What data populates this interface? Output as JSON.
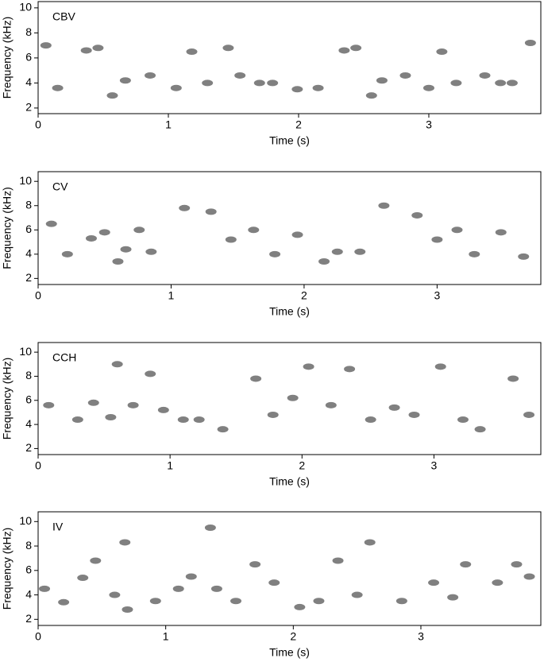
{
  "chart_data": [
    {
      "type": "spectrogram",
      "label": "CBV",
      "xlabel": "Time (s)",
      "ylabel": "Frequency (kHz)",
      "color": "#555555",
      "xlim": [
        0,
        3.86
      ],
      "ylim": [
        1.55,
        10.5
      ],
      "xticks": [
        0,
        1,
        2,
        3
      ],
      "yticks": [
        2,
        4,
        6,
        8,
        10
      ],
      "x": [
        0.06,
        0.15,
        0.37,
        0.46,
        0.57,
        0.67,
        0.86,
        1.06,
        1.18,
        1.3,
        1.46,
        1.55,
        1.7,
        1.8,
        1.99,
        2.15,
        2.35,
        2.44,
        2.56,
        2.64,
        2.82,
        3.0,
        3.1,
        3.21,
        3.43,
        3.55,
        3.64,
        3.78
      ],
      "values": [
        7.0,
        3.6,
        6.6,
        6.8,
        3.0,
        4.2,
        4.6,
        3.6,
        6.5,
        4.0,
        6.8,
        4.6,
        4.0,
        4.0,
        3.5,
        3.6,
        6.6,
        6.8,
        3.0,
        4.2,
        4.6,
        3.6,
        6.5,
        4.0,
        4.6,
        4.0,
        4.0,
        7.2
      ]
    },
    {
      "type": "spectrogram",
      "label": "CV",
      "xlabel": "Time (s)",
      "ylabel": "Frequency (kHz)",
      "color": "#555555",
      "xlim": [
        0,
        3.78
      ],
      "ylim": [
        1.5,
        10.8
      ],
      "xticks": [
        0,
        1,
        2,
        3
      ],
      "yticks": [
        2,
        4,
        6,
        8,
        10
      ],
      "x": [
        0.1,
        0.22,
        0.4,
        0.5,
        0.6,
        0.66,
        0.76,
        0.85,
        1.1,
        1.3,
        1.45,
        1.62,
        1.78,
        1.95,
        2.15,
        2.25,
        2.42,
        2.6,
        2.85,
        3.0,
        3.15,
        3.28,
        3.48,
        3.65
      ],
      "values": [
        6.5,
        4.0,
        5.3,
        5.8,
        3.4,
        4.4,
        6.0,
        4.2,
        7.8,
        7.5,
        5.2,
        6.0,
        4.0,
        5.6,
        3.4,
        4.2,
        4.2,
        8.0,
        7.2,
        5.2,
        6.0,
        4.0,
        5.8,
        3.8
      ]
    },
    {
      "type": "spectrogram",
      "label": "CCH",
      "xlabel": "Time (s)",
      "ylabel": "Frequency (kHz)",
      "color": "#555555",
      "xlim": [
        0,
        3.81
      ],
      "ylim": [
        1.5,
        10.8
      ],
      "xticks": [
        0,
        1,
        2,
        3
      ],
      "yticks": [
        2,
        4,
        6,
        8,
        10
      ],
      "x": [
        0.08,
        0.3,
        0.42,
        0.55,
        0.6,
        0.72,
        0.85,
        0.95,
        1.1,
        1.22,
        1.4,
        1.65,
        1.78,
        1.93,
        2.05,
        2.22,
        2.36,
        2.52,
        2.7,
        2.85,
        3.05,
        3.22,
        3.35,
        3.6,
        3.72
      ],
      "values": [
        5.6,
        4.4,
        5.8,
        4.6,
        9.0,
        5.6,
        8.2,
        5.2,
        4.4,
        4.4,
        3.6,
        7.8,
        4.8,
        6.2,
        8.8,
        5.6,
        8.6,
        4.4,
        5.4,
        4.8,
        8.8,
        4.4,
        3.6,
        7.8,
        4.8
      ]
    },
    {
      "type": "spectrogram",
      "label": "IV",
      "xlabel": "Time (s)",
      "ylabel": "Frequency (kHz)",
      "color": "#555555",
      "xlim": [
        0,
        3.94
      ],
      "ylim": [
        1.5,
        10.8
      ],
      "xticks": [
        0,
        1,
        2,
        3
      ],
      "yticks": [
        2,
        4,
        6,
        8,
        10
      ],
      "x": [
        0.05,
        0.2,
        0.35,
        0.45,
        0.6,
        0.68,
        0.7,
        0.92,
        1.1,
        1.2,
        1.35,
        1.4,
        1.55,
        1.7,
        1.85,
        2.05,
        2.2,
        2.35,
        2.5,
        2.6,
        2.85,
        3.1,
        3.25,
        3.35,
        3.6,
        3.75,
        3.85
      ],
      "values": [
        4.5,
        3.4,
        5.4,
        6.8,
        4.0,
        8.3,
        2.8,
        3.5,
        4.5,
        5.5,
        9.5,
        4.5,
        3.5,
        6.5,
        5.0,
        3.0,
        3.5,
        6.8,
        4.0,
        8.3,
        3.5,
        5.0,
        3.8,
        6.5,
        5.0,
        6.5,
        5.5
      ]
    }
  ]
}
